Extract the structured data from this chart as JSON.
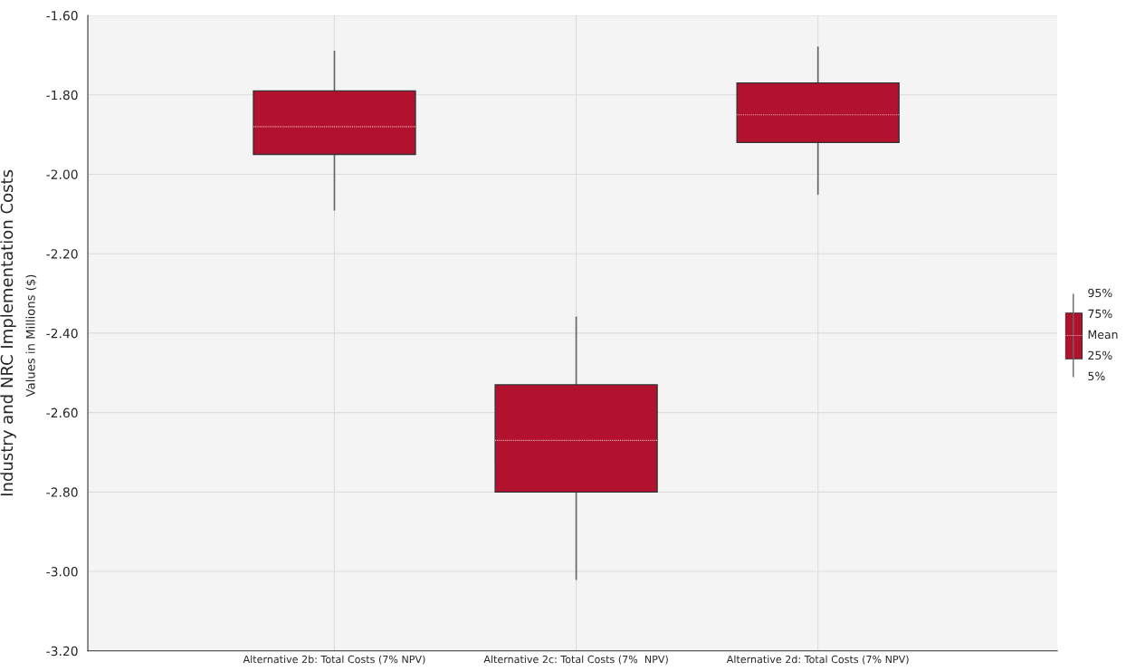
{
  "chart_data": {
    "type": "box",
    "ylabel": "Industry and NRC Implementation Costs",
    "annotations": [
      "Values in Millions ($)",
      "95%",
      "75%",
      "Mean",
      "25%",
      "5%"
    ],
    "categories": [
      "Alternative 2b: Total Costs (7% NPV)",
      "Alternative 2c: Total Costs (7%  NPV)",
      "Alternative 2d: Total Costs (7% NPV)"
    ],
    "color": "#b3122f",
    "boxes": [
      {
        "low": -2.09,
        "q1": -1.95,
        "median": null,
        "q3": -1.79,
        "high": -1.69,
        "mean": -1.88
      },
      {
        "low": -3.02,
        "q1": -2.8,
        "median": null,
        "q3": -2.53,
        "high": -2.36,
        "mean": -2.67
      },
      {
        "low": -2.05,
        "q1": -1.92,
        "median": null,
        "q3": -1.77,
        "high": -1.68,
        "mean": -1.85
      }
    ],
    "ylim": [
      -3.2,
      -1.6
    ],
    "yticks": [
      {
        "value": -3.2,
        "label": "-3.20"
      },
      {
        "value": -3.0,
        "label": "-3.00"
      },
      {
        "value": -2.8,
        "label": "-2.80"
      },
      {
        "value": -2.6,
        "label": "-2.60"
      },
      {
        "value": -2.4,
        "label": "-2.40"
      },
      {
        "value": -2.2,
        "label": "-2.20"
      },
      {
        "value": -2.0,
        "label": "-2.00"
      },
      {
        "value": -1.8,
        "label": "-1.80"
      },
      {
        "value": -1.6,
        "label": "-1.60"
      }
    ],
    "grid": true
  }
}
